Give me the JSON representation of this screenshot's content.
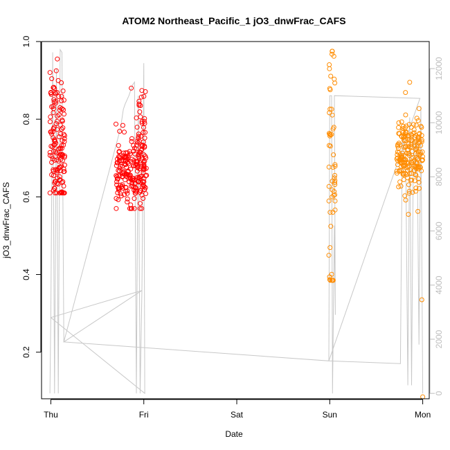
{
  "chart_data": {
    "type": "scatter",
    "title": "ATOM2 Northeast_Pacific_1 jO3_dnwFrac_CAFS",
    "xlabel": "Date",
    "ylabel": "jO3_dnwFrac_CAFS",
    "x_ticks": [
      "Thu",
      "Fri",
      "Sat",
      "Sun",
      "Mon"
    ],
    "xlim": [
      -0.1,
      4.07
    ],
    "ylim": [
      0.08,
      1.0
    ],
    "y_ticks": [
      0.2,
      0.4,
      0.6,
      0.8,
      1.0
    ],
    "y_tick_labels": [
      "0.2",
      "0.4",
      "0.6",
      "0.8",
      "1.0"
    ],
    "y2lim": [
      -200,
      13000
    ],
    "y2_ticks": [
      0,
      2000,
      4000,
      6000,
      8000,
      10000,
      12000
    ],
    "y2_tick_labels": [
      "0",
      "2000",
      "4000",
      "6000",
      "8000",
      "10000",
      "12000"
    ],
    "grid": false,
    "legend": "none",
    "series_colors": {
      "day1": "#ff0000",
      "day2": "#ff8c00",
      "altitude": "#c8c8c8"
    },
    "series": [
      {
        "color_key": "day1",
        "clusters": [
          {
            "x_start": -0.01,
            "x_end": 0.15,
            "n": 140,
            "y_min": 0.61,
            "y_max": 0.955,
            "y_center": 0.74,
            "spread": 0.085
          },
          {
            "x_start": 0.7,
            "x_end": 1.03,
            "n": 210,
            "y_min": 0.57,
            "y_max": 0.88,
            "y_center": 0.665,
            "spread": 0.045,
            "high_tail": {
              "x_start": 0.92,
              "x_end": 1.02,
              "n": 25,
              "y_min": 0.72,
              "y_max": 0.88
            }
          }
        ]
      },
      {
        "color_key": "day2",
        "clusters": [
          {
            "x_start": -0.01,
            "x_end": 0.06,
            "n": 55,
            "y_min": 0.385,
            "y_max": 0.975,
            "y_center": 0.68,
            "spread": 0.16
          },
          {
            "x_start": 0.72,
            "x_end": 1.0,
            "n": 200,
            "y_min": 0.555,
            "y_max": 0.895,
            "y_center": 0.705,
            "spread": 0.05
          },
          {
            "points": [
              [
                0.99,
                0.335
              ],
              [
                1.0,
                0.085
              ]
            ]
          }
        ],
        "x_offset": 3
      },
      {
        "color_key": "altitude",
        "axis": "right",
        "points": [
          [
            -0.01,
            0
          ],
          [
            0.0,
            2800
          ],
          [
            0.02,
            12600
          ],
          [
            0.04,
            0
          ],
          [
            0.06,
            12000
          ],
          [
            0.08,
            0
          ],
          [
            0.1,
            12700
          ],
          [
            0.12,
            12600
          ],
          [
            0.14,
            1900
          ],
          [
            0.75,
            9800
          ],
          [
            0.78,
            10500
          ],
          [
            0.8,
            10700
          ],
          [
            0.84,
            11000
          ],
          [
            0.88,
            11400
          ],
          [
            0.9,
            11500
          ],
          [
            0.92,
            0
          ],
          [
            0.94,
            11000
          ],
          [
            0.96,
            0
          ],
          [
            0.98,
            3800
          ],
          [
            1.0,
            12200
          ],
          [
            1.01,
            0
          ],
          [
            0.0,
            2800
          ],
          [
            0.98,
            3800
          ],
          [
            0.14,
            1900
          ],
          [
            2.99,
            1200
          ],
          [
            3.0,
            11000
          ],
          [
            3.02,
            11000
          ],
          [
            3.03,
            0
          ],
          [
            3.05,
            6200
          ],
          [
            3.06,
            2900
          ],
          [
            3.05,
            11000
          ],
          [
            3.97,
            10900
          ],
          [
            2.99,
            1200
          ],
          [
            3.76,
            1100
          ],
          [
            3.78,
            9500
          ],
          [
            3.8,
            8800
          ],
          [
            3.82,
            7800
          ],
          [
            3.84,
            300
          ],
          [
            3.86,
            10200
          ],
          [
            3.88,
            300
          ],
          [
            3.9,
            9600
          ],
          [
            3.92,
            8000
          ],
          [
            3.94,
            9500
          ],
          [
            3.96,
            1800
          ],
          [
            3.98,
            10600
          ],
          [
            4.0,
            0
          ]
        ]
      }
    ]
  }
}
